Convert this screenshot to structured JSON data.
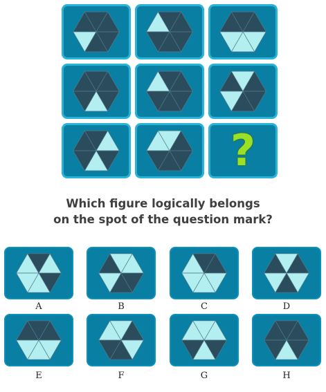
{
  "question": {
    "line1": "Which figure logically belongs",
    "line2": "on the spot of the question mark?"
  },
  "colors": {
    "dark": "#2a4c5c",
    "light": "#b3eef0",
    "tile": "#0a7fa4",
    "tile_border": "#29b3d6",
    "qmark": "#9be022",
    "stroke": "#4f7a8a"
  },
  "grid": [
    {
      "cells": [
        0,
        0,
        0,
        0,
        0,
        1
      ]
    },
    {
      "cells": [
        1,
        0,
        0,
        0,
        0,
        0
      ]
    },
    {
      "cells": [
        0,
        0,
        0,
        1,
        1,
        1
      ]
    },
    {
      "cells": [
        0,
        0,
        0,
        0,
        1,
        0
      ]
    },
    {
      "cells": [
        1,
        0,
        0,
        0,
        0,
        0
      ]
    },
    {
      "cells": [
        0,
        1,
        0,
        0,
        0,
        1
      ]
    },
    {
      "cells": [
        0,
        0,
        1,
        0,
        1,
        0
      ]
    },
    {
      "cells": [
        1,
        1,
        0,
        0,
        0,
        0
      ]
    },
    {
      "question_mark": "?"
    }
  ],
  "answers": [
    {
      "label": "A",
      "cells": [
        1,
        0,
        1,
        0,
        1,
        1
      ]
    },
    {
      "label": "B",
      "cells": [
        0,
        1,
        1,
        0,
        0,
        1
      ]
    },
    {
      "label": "C",
      "cells": [
        1,
        0,
        0,
        1,
        1,
        1
      ]
    },
    {
      "label": "D",
      "cells": [
        0,
        1,
        0,
        1,
        0,
        1
      ]
    },
    {
      "label": "E",
      "cells": [
        0,
        0,
        0,
        1,
        1,
        1
      ]
    },
    {
      "label": "F",
      "cells": [
        1,
        1,
        0,
        1,
        0,
        0
      ]
    },
    {
      "label": "G",
      "cells": [
        1,
        1,
        1,
        0,
        1,
        0
      ]
    },
    {
      "label": "H",
      "cells": [
        0,
        0,
        0,
        0,
        1,
        0
      ]
    }
  ]
}
